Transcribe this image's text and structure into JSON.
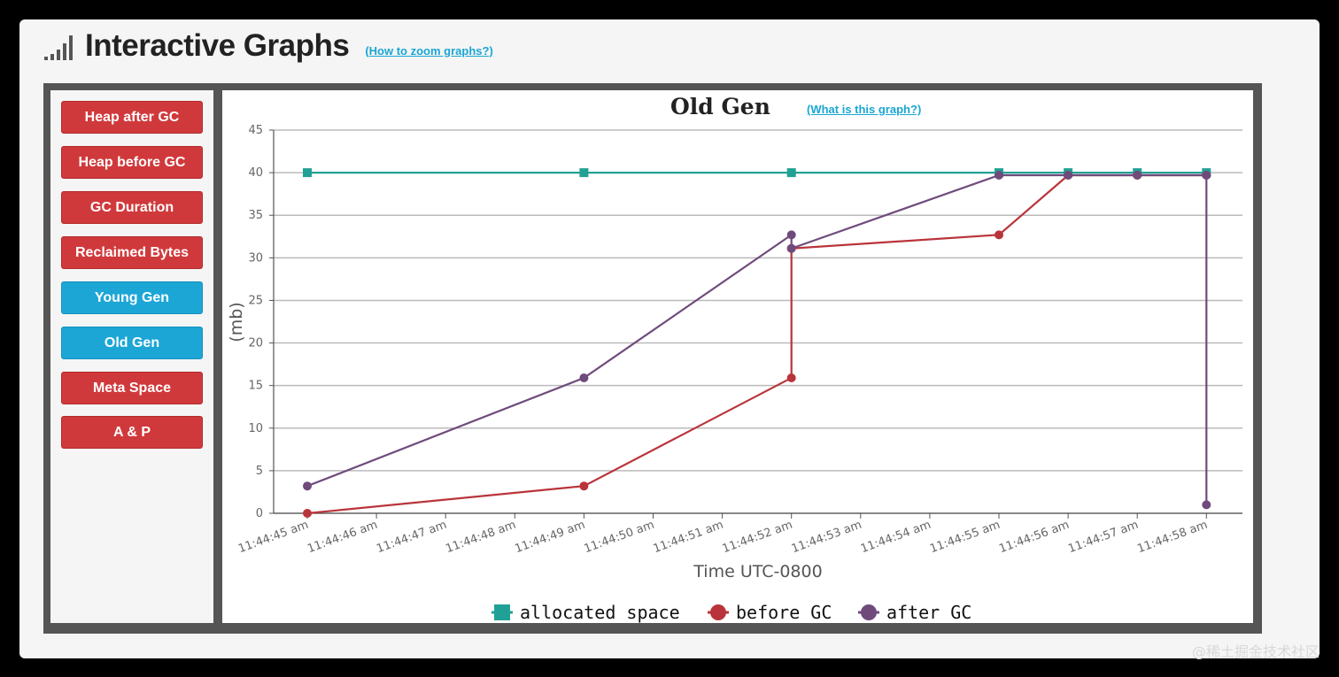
{
  "header": {
    "title": "Interactive Graphs",
    "zoom_link": "(How to zoom graphs?)",
    "icon": "signal-bars-icon"
  },
  "sidebar": {
    "buttons": [
      {
        "label": "Heap after GC",
        "color": "#d0393b"
      },
      {
        "label": "Heap before GC",
        "color": "#d0393b"
      },
      {
        "label": "GC Duration",
        "color": "#d0393b"
      },
      {
        "label": "Reclaimed Bytes",
        "color": "#d0393b"
      },
      {
        "label": "Young Gen",
        "color": "#1ca6d6"
      },
      {
        "label": "Old Gen",
        "color": "#1ca6d6"
      },
      {
        "label": "Meta Space",
        "color": "#d0393b"
      },
      {
        "label": "A & P",
        "color": "#d0393b"
      }
    ]
  },
  "chart_header": {
    "title": "Old Gen",
    "what_link": "(What is this graph?)"
  },
  "watermark": "@稀土掘金技术社区",
  "chart_data": {
    "type": "line",
    "title": "Old Gen",
    "xlabel": "Time UTC-0800",
    "ylabel": "(mb)",
    "ylim": [
      0,
      45
    ],
    "yticks": [
      0,
      5,
      10,
      15,
      20,
      25,
      30,
      35,
      40,
      45
    ],
    "xticks": [
      "11:44:45 am",
      "11:44:46 am",
      "11:44:47 am",
      "11:44:48 am",
      "11:44:49 am",
      "11:44:50 am",
      "11:44:51 am",
      "11:44:52 am",
      "11:44:53 am",
      "11:44:54 am",
      "11:44:55 am",
      "11:44:56 am",
      "11:44:57 am",
      "11:44:58 am"
    ],
    "grid": true,
    "legend_position": "bottom",
    "series": [
      {
        "name": "allocated space",
        "color": "#21a195",
        "marker": "square",
        "points": [
          {
            "x": "11:44:45 am",
            "y": 40
          },
          {
            "x": "11:44:49 am",
            "y": 40
          },
          {
            "x": "11:44:52 am",
            "y": 40
          },
          {
            "x": "11:44:55 am",
            "y": 40
          },
          {
            "x": "11:44:56 am",
            "y": 40
          },
          {
            "x": "11:44:57 am",
            "y": 40
          },
          {
            "x": "11:44:58 am",
            "y": 40
          }
        ]
      },
      {
        "name": "before GC",
        "color": "#b9343a",
        "marker": "circle",
        "points": [
          {
            "x": "11:44:45 am",
            "y": 0
          },
          {
            "x": "11:44:49 am",
            "y": 3.2
          },
          {
            "x": "11:44:52 am",
            "y": 15.9
          },
          {
            "x": "11:44:52 am",
            "y": 31.1
          },
          {
            "x": "11:44:55 am",
            "y": 32.7
          },
          {
            "x": "11:44:56 am",
            "y": 39.7
          },
          {
            "x": "11:44:57 am",
            "y": 39.7
          },
          {
            "x": "11:44:58 am",
            "y": 39.7
          }
        ]
      },
      {
        "name": "after GC",
        "color": "#6f4b7c",
        "marker": "circle",
        "points": [
          {
            "x": "11:44:45 am",
            "y": 3.2
          },
          {
            "x": "11:44:49 am",
            "y": 15.9
          },
          {
            "x": "11:44:52 am",
            "y": 32.7
          },
          {
            "x": "11:44:52 am",
            "y": 31.1
          },
          {
            "x": "11:44:55 am",
            "y": 39.7
          },
          {
            "x": "11:44:56 am",
            "y": 39.7
          },
          {
            "x": "11:44:57 am",
            "y": 39.7
          },
          {
            "x": "11:44:58 am",
            "y": 39.7
          },
          {
            "x": "11:44:58 am",
            "y": 1.0
          }
        ]
      }
    ]
  }
}
